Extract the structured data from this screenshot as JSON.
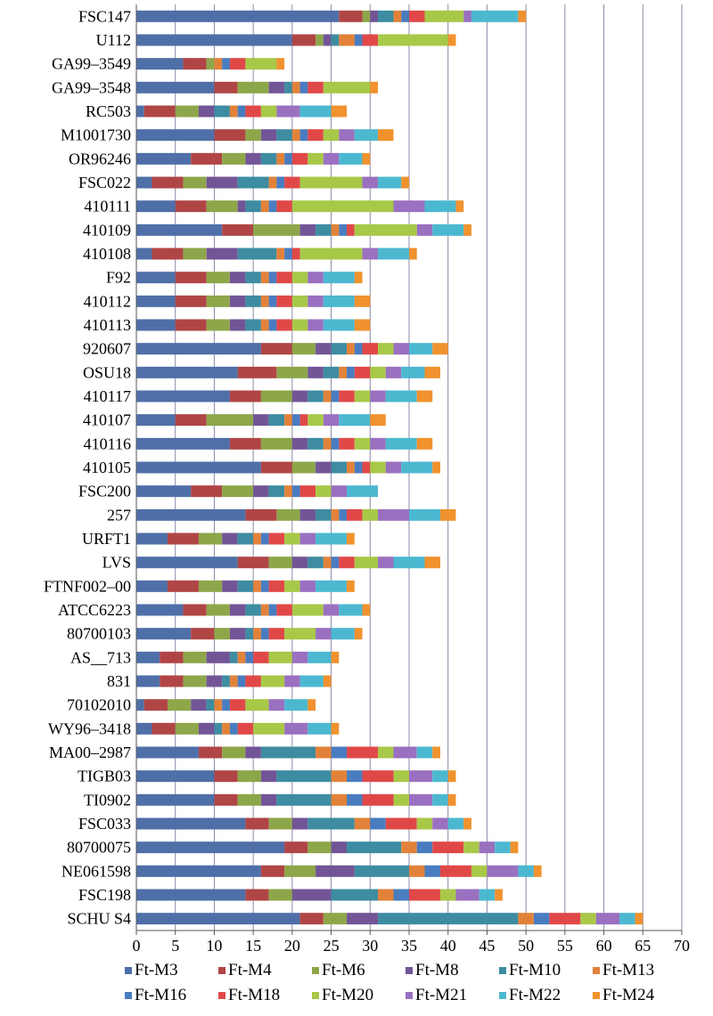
{
  "chart_data": {
    "type": "bar",
    "orientation": "horizontal",
    "stacked": true,
    "title": "",
    "xlabel": "",
    "ylabel": "",
    "xlim": [
      0,
      70
    ],
    "xticks": [
      0,
      5,
      10,
      15,
      20,
      25,
      30,
      35,
      40,
      45,
      50,
      55,
      60,
      65,
      70
    ],
    "grid": true,
    "legend_position": "bottom",
    "categories": [
      "FSC147",
      "U112",
      "GA99–3549",
      "GA99–3548",
      "RC503",
      "M1001730",
      "OR96246",
      "FSC022",
      "410111",
      "410109",
      "410108",
      "F92",
      "410112",
      "410113",
      "920607",
      "OSU18",
      "410117",
      "410107",
      "410116",
      "410105",
      "FSC200",
      "257",
      "URFT1",
      "LVS",
      "FTNF002–00",
      "ATCC6223",
      "80700103",
      "AS__713",
      "831",
      "70102010",
      "WY96–3418",
      "MA00–2987",
      "TIGB03",
      "TI0902",
      "FSC033",
      "80700075",
      "NE061598",
      "FSC198",
      "SCHU S4"
    ],
    "series": [
      {
        "name": "Ft-M3",
        "color": "#4f6fa8",
        "values": [
          26,
          20,
          6,
          10,
          1,
          10,
          7,
          2,
          5,
          11,
          2,
          5,
          5,
          5,
          16,
          13,
          12,
          5,
          12,
          16,
          7,
          14,
          4,
          13,
          4,
          6,
          7,
          3,
          3,
          1,
          2,
          8,
          10,
          10,
          14,
          19,
          16,
          14,
          21
        ]
      },
      {
        "name": "Ft-M4",
        "color": "#b04545",
        "values": [
          3,
          3,
          3,
          3,
          4,
          4,
          4,
          4,
          4,
          4,
          4,
          4,
          4,
          4,
          4,
          5,
          4,
          4,
          4,
          4,
          4,
          4,
          4,
          4,
          4,
          3,
          3,
          3,
          3,
          3,
          3,
          3,
          3,
          3,
          3,
          3,
          3,
          3,
          3
        ]
      },
      {
        "name": "Ft-M6",
        "color": "#8ea64a",
        "values": [
          1,
          1,
          1,
          4,
          3,
          2,
          3,
          3,
          4,
          6,
          3,
          3,
          3,
          3,
          3,
          4,
          4,
          6,
          4,
          3,
          4,
          3,
          3,
          3,
          3,
          3,
          2,
          3,
          3,
          3,
          3,
          3,
          3,
          3,
          3,
          3,
          4,
          3,
          3
        ]
      },
      {
        "name": "Ft-M8",
        "color": "#725596",
        "values": [
          1,
          1,
          0,
          2,
          2,
          2,
          2,
          4,
          1,
          2,
          4,
          2,
          2,
          2,
          2,
          2,
          2,
          2,
          2,
          2,
          2,
          2,
          2,
          2,
          2,
          2,
          2,
          3,
          2,
          2,
          2,
          2,
          2,
          2,
          2,
          2,
          5,
          5,
          4
        ]
      },
      {
        "name": "Ft-M10",
        "color": "#3e8ca1",
        "values": [
          2,
          1,
          0,
          1,
          2,
          2,
          2,
          4,
          2,
          2,
          5,
          2,
          2,
          2,
          2,
          2,
          2,
          2,
          2,
          2,
          2,
          2,
          2,
          2,
          2,
          2,
          1,
          1,
          1,
          1,
          1,
          7,
          7,
          7,
          6,
          7,
          7,
          6,
          18
        ]
      },
      {
        "name": "Ft-M13",
        "color": "#e2823a",
        "values": [
          1,
          2,
          1,
          1,
          1,
          1,
          1,
          1,
          1,
          1,
          1,
          1,
          1,
          1,
          1,
          1,
          1,
          1,
          1,
          1,
          1,
          1,
          1,
          1,
          1,
          1,
          1,
          1,
          1,
          1,
          1,
          2,
          2,
          2,
          2,
          2,
          2,
          2,
          2
        ]
      },
      {
        "name": "Ft-M16",
        "color": "#4a7cc0",
        "values": [
          1,
          1,
          1,
          1,
          1,
          1,
          1,
          1,
          1,
          1,
          1,
          1,
          1,
          1,
          1,
          1,
          1,
          1,
          1,
          1,
          1,
          1,
          1,
          1,
          1,
          1,
          1,
          1,
          1,
          1,
          1,
          2,
          2,
          2,
          2,
          2,
          2,
          2,
          2
        ]
      },
      {
        "name": "Ft-M18",
        "color": "#e04848",
        "values": [
          2,
          2,
          2,
          2,
          2,
          2,
          2,
          2,
          2,
          1,
          1,
          2,
          2,
          2,
          2,
          2,
          2,
          1,
          2,
          1,
          2,
          2,
          2,
          2,
          2,
          2,
          2,
          2,
          2,
          2,
          2,
          4,
          4,
          4,
          4,
          4,
          4,
          4,
          4
        ]
      },
      {
        "name": "Ft-M20",
        "color": "#a8c848",
        "values": [
          5,
          9,
          4,
          6,
          2,
          2,
          2,
          8,
          13,
          8,
          8,
          2,
          2,
          2,
          2,
          2,
          2,
          2,
          2,
          2,
          2,
          2,
          2,
          3,
          2,
          4,
          4,
          3,
          3,
          3,
          4,
          2,
          2,
          2,
          2,
          2,
          2,
          2,
          2
        ]
      },
      {
        "name": "Ft-M21",
        "color": "#9a70c0",
        "values": [
          1,
          0,
          0,
          0,
          3,
          2,
          2,
          2,
          4,
          2,
          2,
          2,
          2,
          2,
          2,
          2,
          2,
          2,
          2,
          2,
          2,
          4,
          2,
          2,
          2,
          2,
          2,
          2,
          2,
          2,
          3,
          3,
          3,
          3,
          2,
          2,
          4,
          3,
          3
        ]
      },
      {
        "name": "Ft-M22",
        "color": "#4cb8d0",
        "values": [
          6,
          0,
          0,
          0,
          4,
          3,
          3,
          3,
          4,
          4,
          4,
          4,
          4,
          4,
          3,
          3,
          4,
          4,
          4,
          4,
          4,
          4,
          4,
          4,
          4,
          3,
          3,
          3,
          3,
          3,
          3,
          2,
          2,
          2,
          2,
          2,
          2,
          2,
          2
        ]
      },
      {
        "name": "Ft-M24",
        "color": "#f0922e",
        "values": [
          1,
          1,
          1,
          1,
          2,
          2,
          1,
          1,
          1,
          1,
          1,
          1,
          2,
          2,
          2,
          2,
          2,
          2,
          2,
          1,
          0,
          2,
          1,
          2,
          1,
          1,
          1,
          1,
          1,
          1,
          1,
          1,
          1,
          1,
          1,
          1,
          1,
          1,
          1
        ]
      }
    ]
  }
}
